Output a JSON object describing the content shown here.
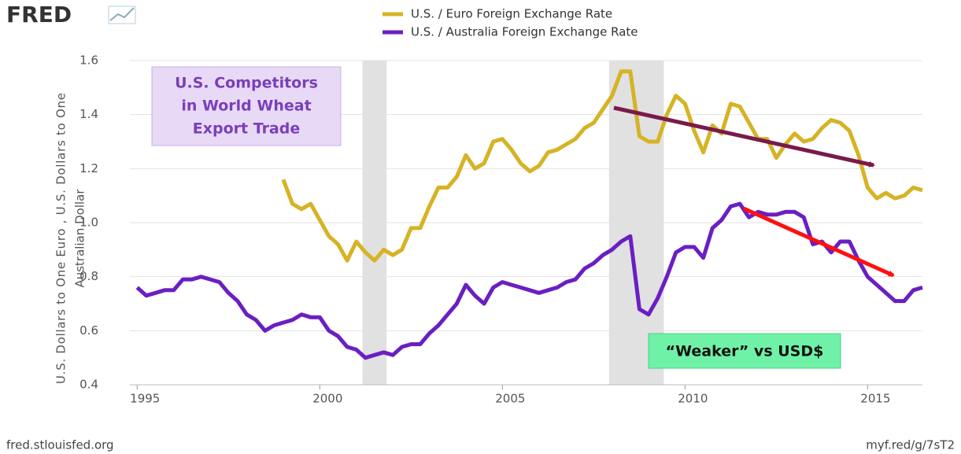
{
  "brand": "FRED",
  "footer_left": "fred.stlouisfed.org",
  "footer_right": "myf.red/g/7sT2",
  "chart_data": {
    "type": "line",
    "ylabel": [
      "U.S. Dollars to One Euro , U.S. Dollars to One",
      "Australian Dollar"
    ],
    "x": [
      1995,
      1995.25,
      1995.5,
      1995.75,
      1996,
      1996.25,
      1996.5,
      1996.75,
      1997,
      1997.25,
      1997.5,
      1997.75,
      1998,
      1998.25,
      1998.5,
      1998.75,
      1999,
      1999.25,
      1999.5,
      1999.75,
      2000,
      2000.25,
      2000.5,
      2000.75,
      2001,
      2001.25,
      2001.5,
      2001.75,
      2002,
      2002.25,
      2002.5,
      2002.75,
      2003,
      2003.25,
      2003.5,
      2003.75,
      2004,
      2004.25,
      2004.5,
      2004.75,
      2005,
      2005.25,
      2005.5,
      2005.75,
      2006,
      2006.25,
      2006.5,
      2006.75,
      2007,
      2007.25,
      2007.5,
      2007.75,
      2008,
      2008.25,
      2008.5,
      2008.75,
      2009,
      2009.25,
      2009.5,
      2009.75,
      2010,
      2010.25,
      2010.5,
      2010.75,
      2011,
      2011.25,
      2011.5,
      2011.75,
      2012,
      2012.25,
      2012.5,
      2012.75,
      2013,
      2013.25,
      2013.5,
      2013.75,
      2014,
      2014.25,
      2014.5,
      2014.75,
      2015,
      2015.25,
      2015.5,
      2015.75,
      2016,
      2016.25,
      2016.5
    ],
    "series": [
      {
        "name": "U.S. / Euro Foreign Exchange Rate",
        "color": "#d6b325",
        "values": [
          null,
          null,
          null,
          null,
          null,
          null,
          null,
          null,
          null,
          null,
          null,
          null,
          null,
          null,
          null,
          null,
          1.16,
          1.07,
          1.05,
          1.07,
          1.01,
          0.95,
          0.92,
          0.86,
          0.93,
          0.89,
          0.86,
          0.9,
          0.88,
          0.9,
          0.98,
          0.98,
          1.06,
          1.13,
          1.13,
          1.17,
          1.25,
          1.2,
          1.22,
          1.3,
          1.31,
          1.27,
          1.22,
          1.19,
          1.21,
          1.26,
          1.27,
          1.29,
          1.31,
          1.35,
          1.37,
          1.42,
          1.47,
          1.56,
          1.56,
          1.32,
          1.3,
          1.3,
          1.4,
          1.47,
          1.44,
          1.34,
          1.26,
          1.36,
          1.33,
          1.44,
          1.43,
          1.37,
          1.31,
          1.31,
          1.24,
          1.29,
          1.33,
          1.3,
          1.31,
          1.35,
          1.38,
          1.37,
          1.34,
          1.25,
          1.13,
          1.09,
          1.11,
          1.09,
          1.1,
          1.13,
          1.12
        ]
      },
      {
        "name": "U.S. / Australia Foreign Exchange Rate",
        "color": "#6a1fc2",
        "values": [
          0.76,
          0.73,
          0.74,
          0.75,
          0.75,
          0.79,
          0.79,
          0.8,
          0.79,
          0.78,
          0.74,
          0.71,
          0.66,
          0.64,
          0.6,
          0.62,
          0.63,
          0.64,
          0.66,
          0.65,
          0.65,
          0.6,
          0.58,
          0.54,
          0.53,
          0.5,
          0.51,
          0.52,
          0.51,
          0.54,
          0.55,
          0.55,
          0.59,
          0.62,
          0.66,
          0.7,
          0.77,
          0.73,
          0.7,
          0.76,
          0.78,
          0.77,
          0.76,
          0.75,
          0.74,
          0.75,
          0.76,
          0.78,
          0.79,
          0.83,
          0.85,
          0.88,
          0.9,
          0.93,
          0.95,
          0.68,
          0.66,
          0.72,
          0.8,
          0.89,
          0.91,
          0.91,
          0.87,
          0.98,
          1.01,
          1.06,
          1.07,
          1.02,
          1.04,
          1.03,
          1.03,
          1.04,
          1.04,
          1.02,
          0.92,
          0.93,
          0.89,
          0.93,
          0.93,
          0.86,
          0.8,
          0.77,
          0.74,
          0.71,
          0.71,
          0.75,
          0.76
        ]
      }
    ],
    "xlim": [
      1994.8,
      2016.5
    ],
    "ylim": [
      0.4,
      1.6
    ],
    "xticks": [
      1995,
      2000,
      2005,
      2010,
      2015
    ],
    "yticks": [
      0.4,
      0.6,
      0.8,
      {
        "value": 1,
        "label": "1.0"
      },
      1.2,
      1.4,
      1.6
    ],
    "grid": true,
    "recessions": [
      [
        2001.17,
        2001.83
      ],
      [
        2007.92,
        2009.42
      ]
    ],
    "annotations": {
      "competitors": [
        "U.S. Competitors",
        "in World Wheat",
        "Export Trade"
      ],
      "weaker": "“Weaker” vs USD$"
    }
  }
}
